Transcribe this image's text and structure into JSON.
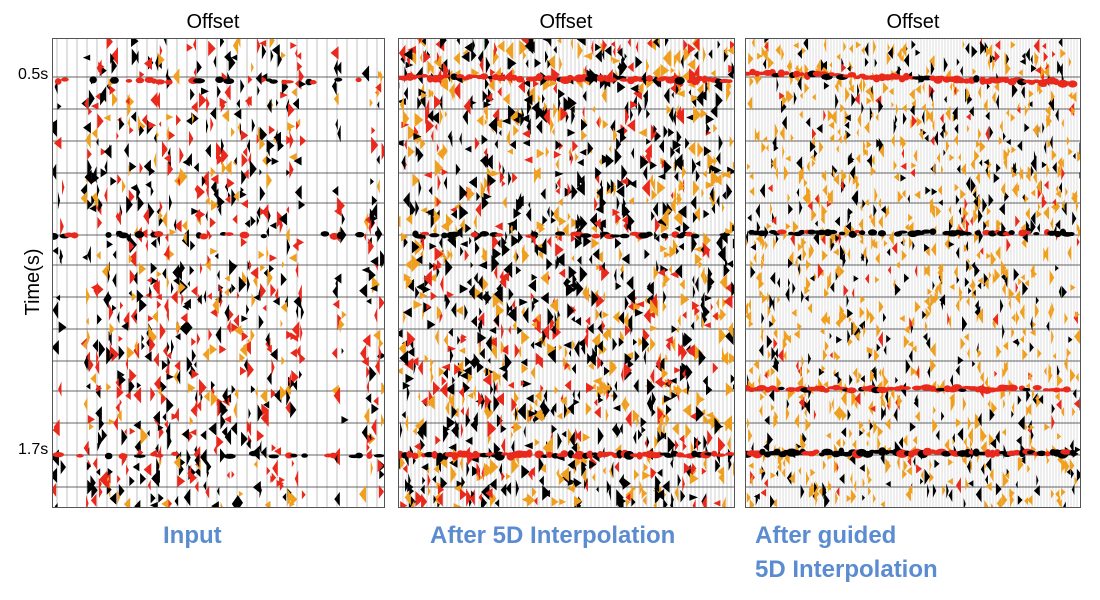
{
  "panels": [
    {
      "id": "input",
      "title": "Offset",
      "caption": "Input"
    },
    {
      "id": "after-5d",
      "title": "Offset",
      "caption": "After 5D Interpolation"
    },
    {
      "id": "after-guided",
      "title": "Offset",
      "caption_line1": "After guided",
      "caption_line2": "5D Interpolation"
    }
  ],
  "axis": {
    "ylabel": "Time(s)",
    "ticks": [
      "0.5s",
      "1.7s"
    ]
  },
  "colors": {
    "caption": "#5b8ccf",
    "reflector": "#e8291c",
    "trough": "#000000",
    "peak_orange": "#f0a020",
    "grid": "#333333"
  }
}
